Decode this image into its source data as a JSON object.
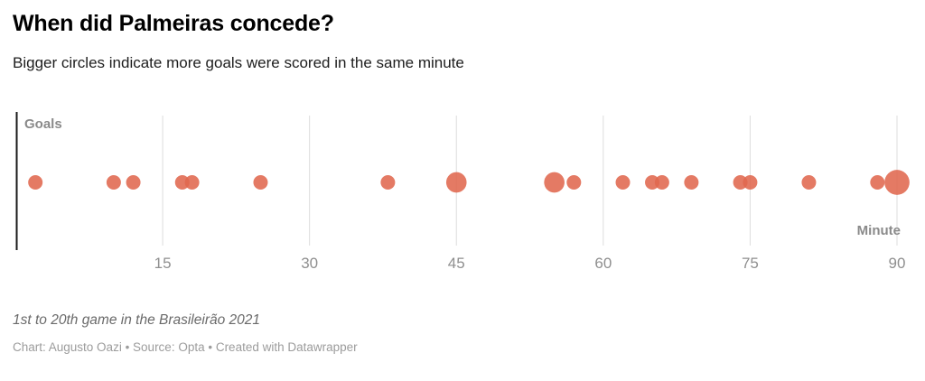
{
  "header": {
    "title": "When did Palmeiras concede?",
    "subtitle": "Bigger circles indicate more goals were scored in the same minute"
  },
  "chart_data": {
    "type": "scatter",
    "title": "When did Palmeiras concede?",
    "subtitle": "Bigger circles indicate more goals were scored in the same minute",
    "xlabel": "Minute",
    "ylabel": "Goals",
    "xlim": [
      0,
      92
    ],
    "x_ticks": [
      15,
      30,
      45,
      60,
      75,
      90
    ],
    "grid": "vertical-only",
    "legend": "none",
    "size_encoding": "circle area proportional to goals conceded in that minute",
    "points": [
      {
        "minute": 2,
        "goals": 1
      },
      {
        "minute": 10,
        "goals": 1
      },
      {
        "minute": 12,
        "goals": 1
      },
      {
        "minute": 17,
        "goals": 1
      },
      {
        "minute": 18,
        "goals": 1
      },
      {
        "minute": 25,
        "goals": 1
      },
      {
        "minute": 38,
        "goals": 1
      },
      {
        "minute": 45,
        "goals": 2
      },
      {
        "minute": 55,
        "goals": 2
      },
      {
        "minute": 57,
        "goals": 1
      },
      {
        "minute": 62,
        "goals": 1
      },
      {
        "minute": 65,
        "goals": 1
      },
      {
        "minute": 66,
        "goals": 1
      },
      {
        "minute": 69,
        "goals": 1
      },
      {
        "minute": 74,
        "goals": 1
      },
      {
        "minute": 75,
        "goals": 1
      },
      {
        "minute": 81,
        "goals": 1
      },
      {
        "minute": 88,
        "goals": 1
      },
      {
        "minute": 90,
        "goals": 3
      }
    ],
    "colors": {
      "dot": "#e0684e",
      "dot_opacity": 0.88,
      "gridline": "#dddddd",
      "axis": "#1a1a1a",
      "tick_label": "#8f8f8f",
      "axis_label": "#8a8a8a"
    }
  },
  "footer": {
    "note": "1st to 20th game in the Brasileirão 2021",
    "credit": "Chart: Augusto Oazi • Source: Opta • Created with Datawrapper"
  }
}
